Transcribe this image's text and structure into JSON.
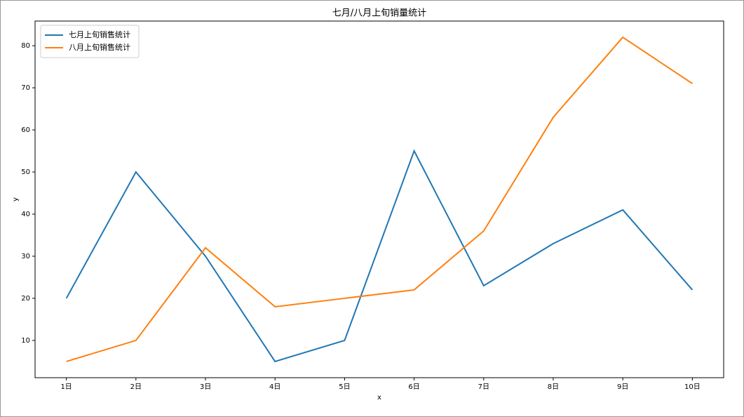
{
  "chart_data": {
    "type": "line",
    "title": "七月/八月上旬销量统计",
    "x_label": "x",
    "y_label": "y",
    "categories": [
      "1日",
      "2日",
      "3日",
      "4日",
      "5日",
      "6日",
      "7日",
      "8日",
      "9日",
      "10日"
    ],
    "series": [
      {
        "name": "七月上旬销售统计",
        "color": "#1f77b4",
        "values": [
          20,
          50,
          30,
          5,
          10,
          55,
          23,
          33,
          41,
          22
        ]
      },
      {
        "name": "八月上旬销售统计",
        "color": "#ff7f0e",
        "values": [
          5,
          10,
          32,
          18,
          20,
          22,
          36,
          63,
          82,
          71
        ]
      }
    ],
    "ylim": [
      1.15,
      85.85
    ],
    "yticks": [
      10,
      20,
      30,
      40,
      50,
      60,
      70,
      80
    ],
    "legend": "upper left"
  }
}
